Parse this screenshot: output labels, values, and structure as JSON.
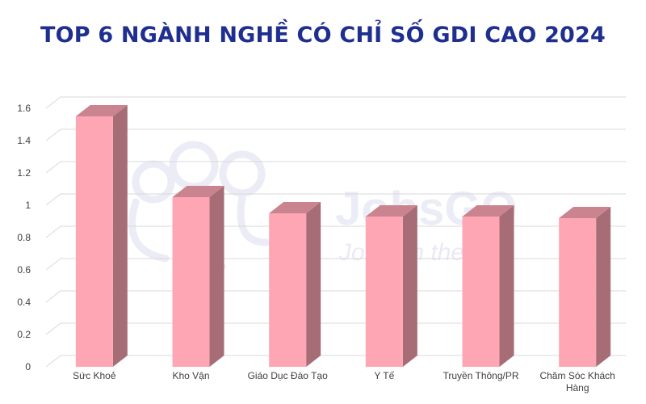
{
  "chart_data": {
    "type": "bar",
    "title": "TOP 6 NGÀNH NGHỀ CÓ CHỈ SỐ GDI CAO 2024",
    "categories": [
      "Sức Khoẻ",
      "Kho Vận",
      "Giáo Dục Đào Tạo",
      "Y Tế",
      "Truyền Thông/PR",
      "Chăm Sóc Khách Hàng"
    ],
    "values": [
      1.55,
      1.05,
      0.95,
      0.93,
      0.93,
      0.92
    ],
    "y_ticks": [
      "0",
      "0.2",
      "0.4",
      "0.6",
      "0.8",
      "1",
      "1.2",
      "1.4",
      "1.6"
    ],
    "ylim": [
      0,
      1.6
    ],
    "xlabel": "",
    "ylabel": "",
    "grid": true,
    "legend": "none",
    "colors": {
      "bar_front": "#ffa6b4",
      "bar_top": "#c9848f",
      "bar_side": "#a66d77",
      "grid": "#d9d9d9",
      "title": "#1f2f8f"
    }
  },
  "watermark": {
    "brand": "JobsGO",
    "slogan": "Jobs on the Go"
  }
}
